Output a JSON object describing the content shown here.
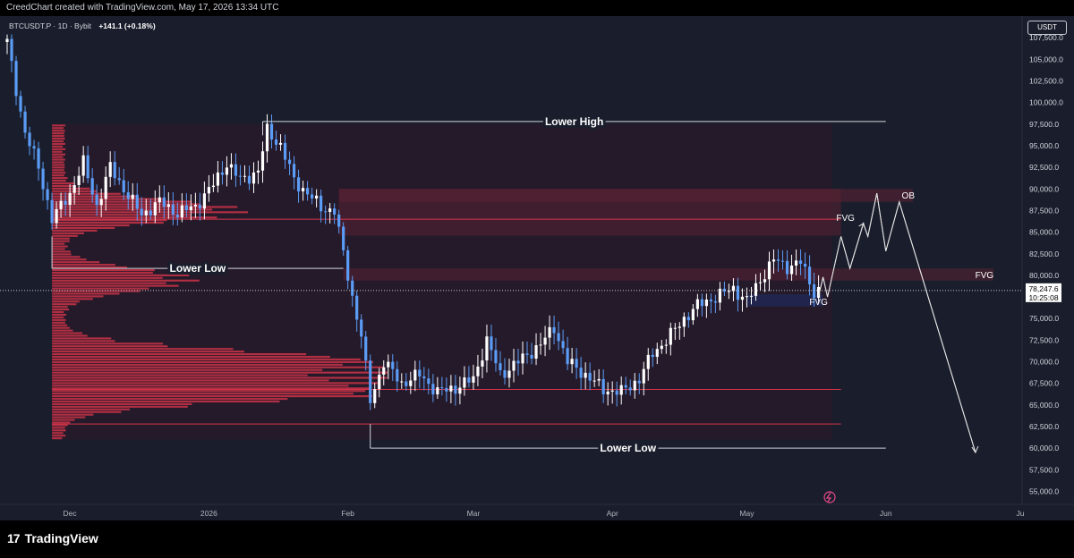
{
  "header": {
    "credit": "CreedChart created with TradingView.com, May 17, 2026 13:34 UTC"
  },
  "symbol": {
    "name": "BTCUSDT.P · 1D · Bybit",
    "change": "+141.1 (+0.18%)"
  },
  "currency_button": "USDT",
  "brand": {
    "logo_mark": "17",
    "name": "TradingView"
  },
  "colors": {
    "background": "#1a1e2c",
    "bull_candle": "#ffffff",
    "bear_candle": "#5b9cf6",
    "volume_profile": "#d6344a",
    "zone": "#5a2233",
    "fvg_blue": "#1f2f6a",
    "line": "#ffffff"
  },
  "chart_data": {
    "type": "candlestick",
    "symbol": "BTCUSDT.P",
    "timeframe": "1D",
    "exchange": "Bybit",
    "ylim": [
      53500,
      110000
    ],
    "yticks": [
      55000,
      57500,
      60000,
      62500,
      65000,
      67500,
      70000,
      72500,
      75000,
      77500,
      80000,
      82500,
      85000,
      87500,
      90000,
      92500,
      95000,
      97500,
      100000,
      102500,
      105000,
      107500
    ],
    "ytick_labels": [
      "55,000.0",
      "57,500.0",
      "60,000.0",
      "62,500.0",
      "65,000.0",
      "67,500.0",
      "70,000.0",
      "72,500.0",
      "75,000.0",
      "77,500.0",
      "80,000.0",
      "82,500.0",
      "85,000.0",
      "87,500.0",
      "90,000.0",
      "92,500.0",
      "95,000.0",
      "97,500.0",
      "100,000.0",
      "102,500.0",
      "105,000.0",
      "107,500.0"
    ],
    "xlim": [
      "2025-11-17",
      "2026-07-01"
    ],
    "xticks": [
      {
        "date": "2025-12-01",
        "label": "Dec"
      },
      {
        "date": "2026-01-01",
        "label": "2026"
      },
      {
        "date": "2026-02-01",
        "label": "Feb"
      },
      {
        "date": "2026-03-01",
        "label": "Mar"
      },
      {
        "date": "2026-04-01",
        "label": "Apr"
      },
      {
        "date": "2026-05-01",
        "label": "May"
      },
      {
        "date": "2026-06-01",
        "label": "Jun"
      },
      {
        "date": "2026-07-01",
        "label": "Ju"
      }
    ],
    "price_anchors": [
      {
        "date": "2025-11-17",
        "price": 107000
      },
      {
        "date": "2025-11-19",
        "price": 101500
      },
      {
        "date": "2025-11-21",
        "price": 96500
      },
      {
        "date": "2025-11-24",
        "price": 92500
      },
      {
        "date": "2025-11-27",
        "price": 86500
      },
      {
        "date": "2025-12-01",
        "price": 89500
      },
      {
        "date": "2025-12-04",
        "price": 93000
      },
      {
        "date": "2025-12-07",
        "price": 88000
      },
      {
        "date": "2025-12-10",
        "price": 92500
      },
      {
        "date": "2025-12-13",
        "price": 90000
      },
      {
        "date": "2025-12-17",
        "price": 87000
      },
      {
        "date": "2025-12-21",
        "price": 88500
      },
      {
        "date": "2025-12-25",
        "price": 87200
      },
      {
        "date": "2025-12-29",
        "price": 88000
      },
      {
        "date": "2026-01-02",
        "price": 90500
      },
      {
        "date": "2026-01-05",
        "price": 93000
      },
      {
        "date": "2026-01-08",
        "price": 91000
      },
      {
        "date": "2026-01-12",
        "price": 92000
      },
      {
        "date": "2026-01-14",
        "price": 96800
      },
      {
        "date": "2026-01-17",
        "price": 95000
      },
      {
        "date": "2026-01-20",
        "price": 91000
      },
      {
        "date": "2026-01-23",
        "price": 89500
      },
      {
        "date": "2026-01-26",
        "price": 87800
      },
      {
        "date": "2026-01-29",
        "price": 87500
      },
      {
        "date": "2026-01-31",
        "price": 82500
      },
      {
        "date": "2026-02-02",
        "price": 77500
      },
      {
        "date": "2026-02-04",
        "price": 73000
      },
      {
        "date": "2026-02-06",
        "price": 65500
      },
      {
        "date": "2026-02-09",
        "price": 70000
      },
      {
        "date": "2026-02-13",
        "price": 67500
      },
      {
        "date": "2026-02-17",
        "price": 68500
      },
      {
        "date": "2026-02-21",
        "price": 66500
      },
      {
        "date": "2026-02-25",
        "price": 67000
      },
      {
        "date": "2026-03-01",
        "price": 68000
      },
      {
        "date": "2026-03-04",
        "price": 72500
      },
      {
        "date": "2026-03-07",
        "price": 68500
      },
      {
        "date": "2026-03-11",
        "price": 70000
      },
      {
        "date": "2026-03-16",
        "price": 72000
      },
      {
        "date": "2026-03-19",
        "price": 74000
      },
      {
        "date": "2026-03-22",
        "price": 70000
      },
      {
        "date": "2026-03-26",
        "price": 68500
      },
      {
        "date": "2026-03-30",
        "price": 66800
      },
      {
        "date": "2026-04-03",
        "price": 66500
      },
      {
        "date": "2026-04-07",
        "price": 68000
      },
      {
        "date": "2026-04-10",
        "price": 71000
      },
      {
        "date": "2026-04-13",
        "price": 72500
      },
      {
        "date": "2026-04-17",
        "price": 75000
      },
      {
        "date": "2026-04-20",
        "price": 76500
      },
      {
        "date": "2026-04-24",
        "price": 77500
      },
      {
        "date": "2026-04-28",
        "price": 78500
      },
      {
        "date": "2026-05-01",
        "price": 77000
      },
      {
        "date": "2026-05-04",
        "price": 79500
      },
      {
        "date": "2026-05-07",
        "price": 81800
      },
      {
        "date": "2026-05-10",
        "price": 81000
      },
      {
        "date": "2026-05-13",
        "price": 81500
      },
      {
        "date": "2026-05-16",
        "price": 78100
      },
      {
        "date": "2026-05-17",
        "price": 78247.6
      }
    ],
    "last_price": "78,247.6",
    "countdown": "10:25:08",
    "annotations": [
      {
        "type": "line",
        "label": "Lower High",
        "price": 97800,
        "from": "2026-01-13",
        "to": "2026-06-01"
      },
      {
        "type": "line",
        "label": "Lower Low",
        "price": 80800,
        "from": "2025-11-27",
        "to": "2026-01-31"
      },
      {
        "type": "line",
        "label": "Lower Low",
        "price": 60000,
        "from": "2026-02-06",
        "to": "2026-06-01"
      },
      {
        "type": "zone",
        "label": "OB",
        "top": 90000,
        "bottom": 88500,
        "from": "2026-01-30",
        "to": "2026-06-07"
      },
      {
        "type": "zone",
        "label": "FVG",
        "top": 90000,
        "bottom": 84600,
        "from": "2026-01-30",
        "to": "2026-05-22"
      },
      {
        "type": "zone",
        "label": "FVG",
        "top": 80800,
        "bottom": 79400,
        "from": "2026-01-31",
        "to": "2026-06-25"
      },
      {
        "type": "zone",
        "label": "FVG",
        "top": 77800,
        "bottom": 76400,
        "from": "2026-05-01",
        "to": "2026-05-18"
      }
    ],
    "horizontal_lines": [
      {
        "price": 86500,
        "color": "#d6344a"
      },
      {
        "price": 66800,
        "color": "#d6344a"
      },
      {
        "price": 62800,
        "color": "#d6344a"
      }
    ],
    "projection_path": [
      {
        "date": "2026-05-17",
        "price": 77600
      },
      {
        "date": "2026-05-18",
        "price": 79800
      },
      {
        "date": "2026-05-19",
        "price": 77500
      },
      {
        "date": "2026-05-22",
        "price": 84500
      },
      {
        "date": "2026-05-24",
        "price": 80800
      },
      {
        "date": "2026-05-27",
        "price": 86000
      },
      {
        "date": "2026-05-28",
        "price": 84500
      },
      {
        "date": "2026-05-30",
        "price": 89500
      },
      {
        "date": "2026-06-01",
        "price": 82800
      },
      {
        "date": "2026-06-04",
        "price": 88500
      },
      {
        "date": "2026-06-21",
        "price": 59500
      }
    ],
    "volume_profile": {
      "price_min": 61000,
      "price_max": 97500,
      "peaks": [
        {
          "price": 87500,
          "strength": 0.55
        },
        {
          "price": 79500,
          "strength": 0.4
        },
        {
          "price": 68500,
          "strength": 1.0
        },
        {
          "price": 66500,
          "strength": 0.85
        },
        {
          "price": 70500,
          "strength": 0.6
        }
      ]
    }
  }
}
